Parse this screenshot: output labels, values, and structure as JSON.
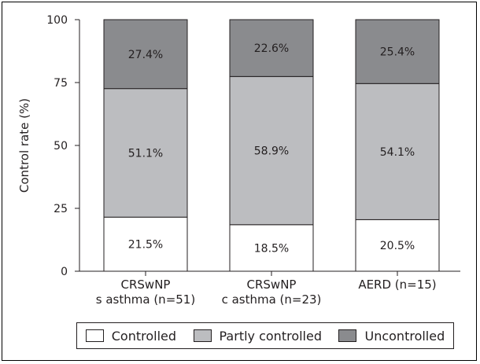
{
  "chart_data": {
    "type": "bar",
    "stacked": true,
    "ylabel": "Control rate (%)",
    "xlabel": "",
    "ylim": [
      0,
      100
    ],
    "yticks": [
      0,
      25,
      50,
      75,
      100
    ],
    "categories": [
      [
        "CRSwNP",
        "s asthma (n=51)"
      ],
      [
        "CRSwNP",
        "c asthma (n=23)"
      ],
      [
        "AERD (n=15)"
      ]
    ],
    "series": [
      {
        "name": "Controlled",
        "color": "#ffffff",
        "values": [
          21.5,
          18.5,
          20.5
        ],
        "labels": [
          "21.5%",
          "18.5%",
          "20.5%"
        ]
      },
      {
        "name": "Partly controlled",
        "color": "#bcbdc0",
        "values": [
          51.1,
          58.9,
          54.1
        ],
        "labels": [
          "51.1%",
          "58.9%",
          "54.1%"
        ]
      },
      {
        "name": "Uncontrolled",
        "color": "#8a8b8e",
        "values": [
          27.4,
          22.6,
          25.4
        ],
        "labels": [
          "27.4%",
          "22.6%",
          "25.4%"
        ]
      }
    ],
    "legend_position": "bottom",
    "grid": false
  }
}
